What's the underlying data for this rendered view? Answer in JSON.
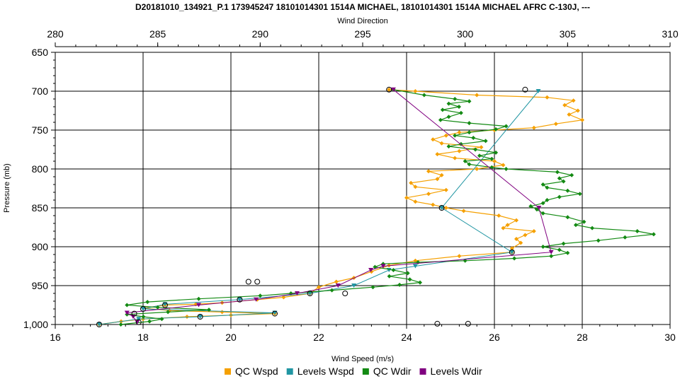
{
  "chart_data": {
    "type": "line",
    "title": "D20181010_134921_P.1 173945247 18101014301 1514A MICHAEL, 18101014301 1514A MICHAEL AFRC C-130J, ---",
    "xlabel_bottom": "Wind Speed (m/s)",
    "xlabel_top": "Wind Direction",
    "ylabel": "Pressure (mb)",
    "xlim_bottom": [
      16,
      30
    ],
    "xlim_top": [
      280,
      310
    ],
    "ylim": [
      650,
      1000
    ],
    "y_inverted": true,
    "xticks_bottom": [
      "16",
      "18",
      "20",
      "22",
      "24",
      "26",
      "28",
      "30"
    ],
    "xticks_top": [
      "280",
      "285",
      "290",
      "295",
      "300",
      "305",
      "310"
    ],
    "yticks": [
      "650",
      "700",
      "750",
      "800",
      "850",
      "900",
      "950",
      "1,000"
    ],
    "grid": true,
    "legend_position": "bottom",
    "colors": {
      "qc_wspd": "#f5a000",
      "levels_wspd": "#2196a3",
      "qc_wdir": "#138a13",
      "levels_wdir": "#800080",
      "marker_circle": "#000000"
    },
    "series": [
      {
        "name": "QC Wspd",
        "axis": "bottom",
        "points": [
          [
            23.6,
            698
          ],
          [
            24.2,
            700
          ],
          [
            25.6,
            705
          ],
          [
            27.2,
            708
          ],
          [
            27.8,
            712
          ],
          [
            27.6,
            718
          ],
          [
            27.9,
            725
          ],
          [
            27.7,
            730
          ],
          [
            28.0,
            737
          ],
          [
            27.4,
            742
          ],
          [
            26.9,
            747
          ],
          [
            26.0,
            750
          ],
          [
            25.2,
            753
          ],
          [
            24.9,
            757
          ],
          [
            24.6,
            762
          ],
          [
            24.8,
            767
          ],
          [
            25.7,
            772
          ],
          [
            25.2,
            777
          ],
          [
            24.7,
            781
          ],
          [
            25.1,
            786
          ],
          [
            26.0,
            790
          ],
          [
            26.2,
            795
          ],
          [
            25.6,
            800
          ],
          [
            24.5,
            803
          ],
          [
            24.8,
            808
          ],
          [
            24.7,
            813
          ],
          [
            24.1,
            818
          ],
          [
            24.2,
            823
          ],
          [
            24.9,
            827
          ],
          [
            24.5,
            832
          ],
          [
            24.0,
            837
          ],
          [
            24.2,
            842
          ],
          [
            24.6,
            846
          ],
          [
            24.9,
            850
          ],
          [
            25.3,
            854
          ],
          [
            26.1,
            860
          ],
          [
            26.5,
            866
          ],
          [
            26.3,
            872
          ],
          [
            26.2,
            876
          ],
          [
            26.9,
            880
          ],
          [
            26.7,
            885
          ],
          [
            26.5,
            890
          ],
          [
            26.6,
            895
          ],
          [
            26.4,
            902
          ],
          [
            26.4,
            907
          ],
          [
            25.2,
            912
          ],
          [
            24.2,
            918
          ],
          [
            23.6,
            924
          ],
          [
            23.2,
            932
          ],
          [
            22.8,
            940
          ],
          [
            22.4,
            945
          ],
          [
            22.0,
            952
          ],
          [
            21.8,
            960
          ],
          [
            21.2,
            965
          ],
          [
            20.6,
            968
          ],
          [
            19.8,
            972
          ],
          [
            19.2,
            974
          ],
          [
            18.5,
            975
          ],
          [
            18.0,
            979
          ],
          [
            18.6,
            982
          ],
          [
            19.8,
            984
          ],
          [
            21.0,
            986
          ],
          [
            20.0,
            988
          ],
          [
            19.0,
            990
          ],
          [
            18.0,
            993
          ],
          [
            17.5,
            996
          ],
          [
            17.0,
            1000
          ]
        ]
      },
      {
        "name": "Levels Wspd",
        "axis": "bottom",
        "points": [
          [
            27.0,
            700
          ],
          [
            24.8,
            850
          ],
          [
            26.4,
            907
          ],
          [
            24.2,
            925
          ],
          [
            23.6,
            930
          ],
          [
            22.8,
            950
          ],
          [
            21.8,
            960
          ],
          [
            20.2,
            968
          ],
          [
            18.5,
            974
          ],
          [
            18.0,
            980
          ],
          [
            21.0,
            985
          ],
          [
            19.3,
            990
          ],
          [
            17.9,
            993
          ],
          [
            17.0,
            1000
          ]
        ]
      },
      {
        "name": "QC Wdir",
        "axis": "top",
        "points": [
          [
            296.5,
            698
          ],
          [
            298.0,
            705
          ],
          [
            299.5,
            710
          ],
          [
            300.2,
            713
          ],
          [
            299.2,
            716
          ],
          [
            299.7,
            720
          ],
          [
            298.9,
            724
          ],
          [
            299.8,
            728
          ],
          [
            299.2,
            733
          ],
          [
            298.8,
            737
          ],
          [
            300.2,
            741
          ],
          [
            302.0,
            745
          ],
          [
            301.5,
            749
          ],
          [
            300.2,
            753
          ],
          [
            299.5,
            757
          ],
          [
            300.4,
            760
          ],
          [
            301.0,
            764
          ],
          [
            299.8,
            768
          ],
          [
            299.2,
            771
          ],
          [
            300.5,
            775
          ],
          [
            301.5,
            779
          ],
          [
            300.7,
            783
          ],
          [
            301.3,
            787
          ],
          [
            300.0,
            790
          ],
          [
            300.2,
            794
          ],
          [
            301.3,
            798
          ],
          [
            302.0,
            800
          ],
          [
            304.5,
            804
          ],
          [
            305.2,
            808
          ],
          [
            304.6,
            812
          ],
          [
            304.8,
            816
          ],
          [
            303.8,
            820
          ],
          [
            304.0,
            824
          ],
          [
            305.0,
            828
          ],
          [
            305.6,
            832
          ],
          [
            304.6,
            836
          ],
          [
            304.0,
            840
          ],
          [
            303.8,
            844
          ],
          [
            303.2,
            848
          ],
          [
            303.5,
            852
          ],
          [
            303.8,
            857
          ],
          [
            305.0,
            862
          ],
          [
            305.8,
            868
          ],
          [
            305.4,
            872
          ],
          [
            306.2,
            876
          ],
          [
            308.4,
            880
          ],
          [
            309.2,
            884
          ],
          [
            307.8,
            888
          ],
          [
            306.5,
            892
          ],
          [
            304.8,
            896
          ],
          [
            303.8,
            900
          ],
          [
            304.6,
            904
          ],
          [
            305.0,
            908
          ],
          [
            304.2,
            912
          ],
          [
            302.4,
            915
          ],
          [
            300.0,
            918
          ],
          [
            297.7,
            920
          ],
          [
            296.0,
            922
          ],
          [
            295.6,
            926
          ],
          [
            296.5,
            930
          ],
          [
            297.2,
            934
          ],
          [
            296.3,
            938
          ],
          [
            297.3,
            942
          ],
          [
            297.8,
            946
          ],
          [
            296.8,
            949
          ],
          [
            295.5,
            952
          ],
          [
            293.5,
            956
          ],
          [
            291.5,
            960
          ],
          [
            290.0,
            963
          ],
          [
            287.0,
            967
          ],
          [
            284.5,
            971
          ],
          [
            283.5,
            975
          ],
          [
            285.0,
            978
          ],
          [
            287.5,
            981
          ],
          [
            285.5,
            984
          ],
          [
            283.5,
            987
          ],
          [
            284.3,
            990
          ],
          [
            285.2,
            993
          ],
          [
            284.6,
            996
          ],
          [
            283.2,
            1000
          ]
        ]
      },
      {
        "name": "Levels Wdir",
        "axis": "top",
        "points": [
          [
            296.5,
            698
          ],
          [
            303.6,
            850
          ],
          [
            304.2,
            907
          ],
          [
            296.0,
            925
          ],
          [
            295.4,
            930
          ],
          [
            293.8,
            950
          ],
          [
            291.8,
            960
          ],
          [
            289.8,
            968
          ],
          [
            287.0,
            975
          ],
          [
            283.5,
            985
          ],
          [
            283.8,
            990
          ],
          [
            284.0,
            997
          ]
        ]
      }
    ],
    "circle_markers": {
      "axis": "bottom",
      "points": [
        [
          20.4,
          945
        ],
        [
          20.6,
          945
        ],
        [
          24.7,
          999
        ],
        [
          25.4,
          999
        ],
        [
          17.0,
          1000
        ],
        [
          18.0,
          980
        ],
        [
          19.3,
          990
        ],
        [
          21.0,
          986
        ],
        [
          18.5,
          975
        ],
        [
          21.8,
          960
        ],
        [
          24.8,
          850
        ],
        [
          26.4,
          907
        ],
        [
          26.7,
          698
        ],
        [
          23.6,
          698
        ],
        [
          20.2,
          968
        ],
        [
          22.6,
          960
        ],
        [
          17.9,
          997
        ],
        [
          17.8,
          986
        ]
      ]
    }
  }
}
